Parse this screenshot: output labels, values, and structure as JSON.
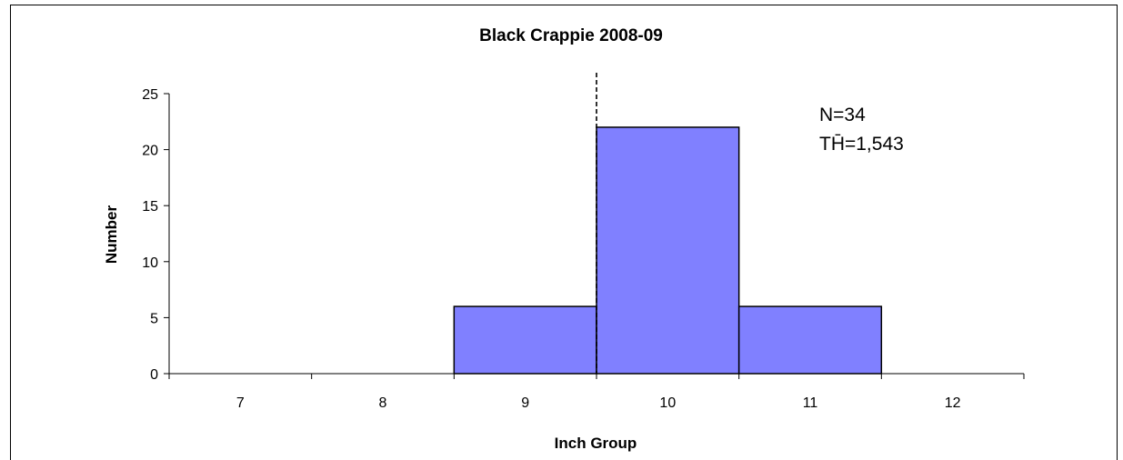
{
  "chart_data": {
    "type": "bar",
    "title": "Black Crappie 2008-09",
    "xlabel": "Inch Group",
    "ylabel": "Number",
    "categories": [
      "7",
      "8",
      "9",
      "10",
      "11",
      "12"
    ],
    "values": [
      0,
      0,
      6,
      22,
      6,
      0
    ],
    "ylim": [
      0,
      25
    ],
    "yticks": [
      "0",
      "5",
      "10",
      "15",
      "20",
      "25"
    ],
    "grid": false,
    "legend": "none",
    "bar_color": "#8080ff",
    "reference_line": {
      "x": 9.5,
      "style": "dashed"
    },
    "annotations": [
      "N=34",
      "TH̄=1,543"
    ]
  }
}
